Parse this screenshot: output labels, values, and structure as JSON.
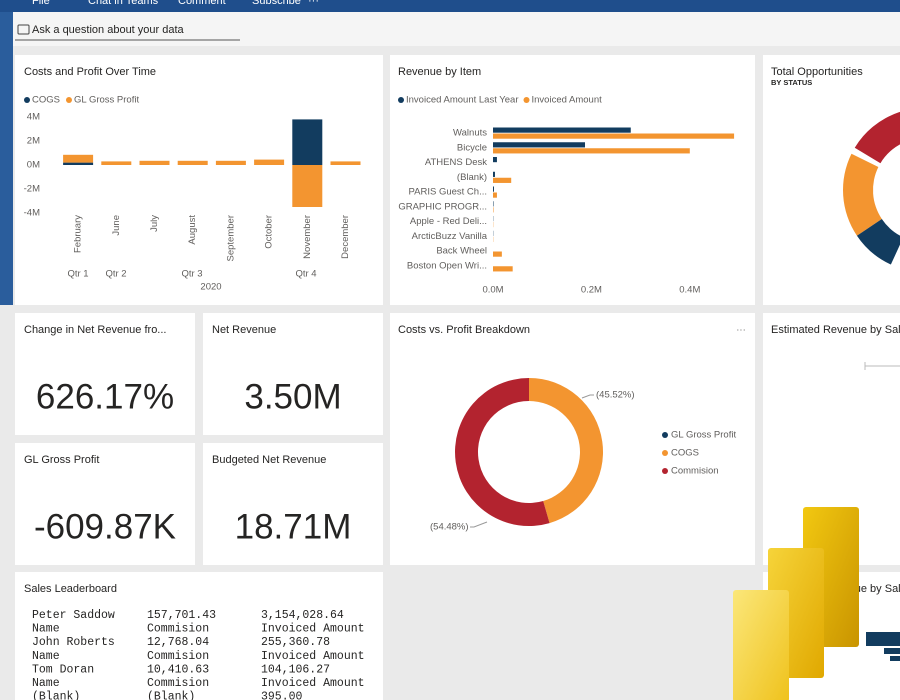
{
  "toolbar": {
    "items": [
      "File",
      "Chat in Teams",
      "Comment",
      "Subscribe",
      "···"
    ]
  },
  "qna": {
    "placeholder": "Ask a question about your data"
  },
  "chart_data": [
    {
      "type": "bar",
      "stacked": true,
      "title": "Costs and Profit Over Time",
      "categories": [
        "February",
        "June",
        "July",
        "August",
        "September",
        "October",
        "November",
        "December"
      ],
      "groups": [
        "Qtr 1",
        "Qtr 2",
        "Qtr 3",
        "Qtr 4"
      ],
      "group_title": "2020",
      "series": [
        {
          "name": "COGS",
          "color": "#123c5f",
          "values": [
            200000,
            0,
            0,
            0,
            0,
            0,
            3800000,
            0
          ]
        },
        {
          "name": "GL Gross Profit",
          "color": "#f39530",
          "values": [
            650000,
            300000,
            350000,
            350000,
            350000,
            450000,
            -3500000,
            300000
          ]
        }
      ],
      "ylim": [
        -4000000,
        4000000
      ],
      "yticks": [
        {
          "value": 4000000,
          "label": "4M"
        },
        {
          "value": 2000000,
          "label": "2M"
        },
        {
          "value": 0,
          "label": "0M"
        },
        {
          "value": -2000000,
          "label": "-2M"
        },
        {
          "value": -4000000,
          "label": "-4M"
        }
      ]
    },
    {
      "type": "barh",
      "title": "Revenue by Item",
      "categories": [
        "Walnuts",
        "Bicycle",
        "ATHENS Desk",
        "(Blank)",
        "PARIS Guest Ch...",
        "GRAPHIC PROGR...",
        "Apple - Red Deli...",
        "ArcticBuzz Vanilla",
        "Back Wheel",
        "Boston Open Wri..."
      ],
      "series": [
        {
          "name": "Invoiced Amount Last Year",
          "color": "#123c5f",
          "values": [
            280000,
            187000,
            8000,
            4000,
            2000,
            1000,
            500,
            500,
            0,
            0
          ]
        },
        {
          "name": "Invoiced Amount",
          "color": "#f39530",
          "values": [
            490000,
            400000,
            0,
            37000,
            8000,
            1000,
            500,
            500,
            18000,
            40000
          ]
        }
      ],
      "xlim": [
        0,
        500000
      ],
      "xticks": [
        {
          "value": 0,
          "label": "0.0M"
        },
        {
          "value": 200000,
          "label": "0.2M"
        },
        {
          "value": 400000,
          "label": "0.4M"
        }
      ]
    },
    {
      "type": "donut",
      "title": "Costs vs. Profit Breakdown",
      "menu": "···",
      "categories": [
        "GL Gross Profit",
        "COGS",
        "Commision"
      ],
      "colors": [
        "#123c5f",
        "#f39530",
        "#b3232f"
      ],
      "values": [
        0,
        45.52,
        54.48
      ],
      "value_labels": [
        null,
        "(45.52%)",
        "(54.48%)"
      ]
    }
  ],
  "cards": [
    {
      "title": "Change in Net Revenue fro...",
      "value": "626.17%"
    },
    {
      "title": "Net Revenue",
      "value": "3.50M"
    },
    {
      "title": "GL Gross Profit",
      "value": "-609.87K"
    },
    {
      "title": "Budgeted Net Revenue",
      "value": "18.71M"
    }
  ],
  "tiles": {
    "total_opportunities": {
      "title": "Total Opportunities",
      "subtitle": "BY STATUS"
    },
    "estimated_revenue": {
      "title": "Estimated Revenue by Sales"
    },
    "estimated_revenue_2": {
      "title": "Estimated Revenue by Sales"
    }
  },
  "leaderboard": {
    "title": "Sales Leaderboard",
    "rows": [
      [
        "Peter Saddow",
        "157,701.43",
        "3,154,028.64"
      ],
      [
        "Name",
        "Commision",
        "Invoiced Amount"
      ],
      [
        "John Roberts",
        "12,768.04",
        "255,360.78"
      ],
      [
        "Name",
        "Commision",
        "Invoiced Amount"
      ],
      [
        "Tom Doran",
        "10,410.63",
        "104,106.27"
      ],
      [
        "Name",
        "Commision",
        "Invoiced Amount"
      ],
      [
        "(Blank)",
        "(Blank)",
        "395.00"
      ]
    ]
  }
}
